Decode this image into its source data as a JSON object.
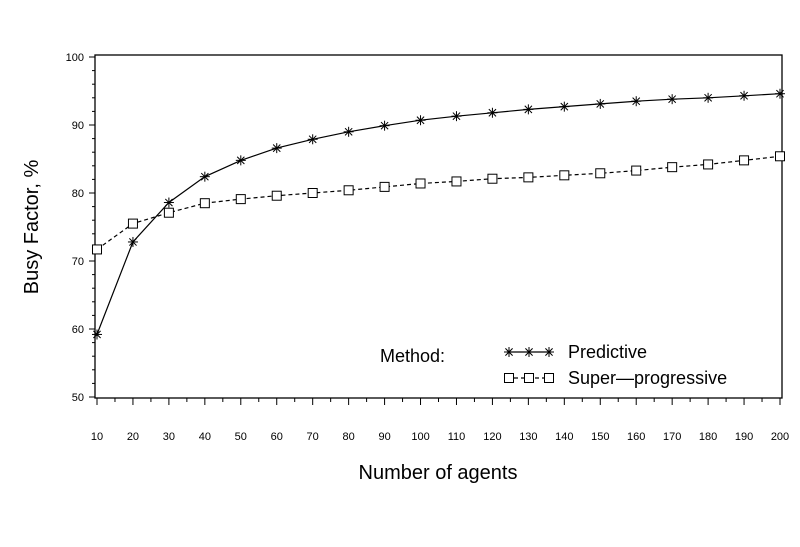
{
  "chart_data": {
    "type": "line",
    "xlabel": "Number of agents",
    "ylabel": "Busy Factor, %",
    "xlim": [
      10,
      200
    ],
    "ylim": [
      50,
      100
    ],
    "x": [
      10,
      20,
      30,
      40,
      50,
      60,
      70,
      80,
      90,
      100,
      110,
      120,
      130,
      140,
      150,
      160,
      170,
      180,
      190,
      200
    ],
    "x_ticks": [
      "10",
      "20",
      "30",
      "40",
      "50",
      "60",
      "70",
      "80",
      "90",
      "100",
      "110",
      "120",
      "130",
      "140",
      "150",
      "160",
      "170",
      "180",
      "190",
      "200"
    ],
    "y_ticks": [
      "50",
      "60",
      "70",
      "80",
      "90",
      "100"
    ],
    "grid": false,
    "legend": {
      "title": "Method:",
      "placement": "bottom-right"
    },
    "series": [
      {
        "name": "Predictive",
        "marker": "asterisk",
        "line_style": "solid",
        "color": "#000000",
        "values": [
          59.2,
          72.8,
          78.6,
          82.4,
          84.8,
          86.6,
          87.9,
          89.0,
          89.9,
          90.7,
          91.3,
          91.8,
          92.3,
          92.7,
          93.1,
          93.5,
          93.8,
          94.0,
          94.3,
          94.6
        ]
      },
      {
        "name": "Super—progressive",
        "marker": "square",
        "line_style": "dashed",
        "color": "#000000",
        "values": [
          71.7,
          75.5,
          77.1,
          78.5,
          79.1,
          79.6,
          80.0,
          80.4,
          80.9,
          81.4,
          81.7,
          82.1,
          82.3,
          82.6,
          82.9,
          83.3,
          83.8,
          84.2,
          84.8,
          85.4
        ]
      }
    ]
  }
}
